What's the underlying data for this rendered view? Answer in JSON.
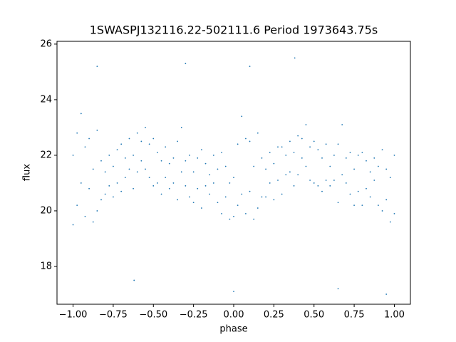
{
  "chart_data": {
    "type": "scatter",
    "title": "1SWASPJ132116.22-502111.6 Period 1973643.75s",
    "xlabel": "phase",
    "ylabel": "flux",
    "color": "#1f77b4",
    "xlim": [
      -1.1,
      1.1
    ],
    "ylim": [
      16.64,
      26.1
    ],
    "xticks": [
      {
        "value": -1,
        "label": "−1.00"
      },
      {
        "value": -0.75,
        "label": "−0.75"
      },
      {
        "value": -0.5,
        "label": "−0.50"
      },
      {
        "value": -0.25,
        "label": "−0.25"
      },
      {
        "value": 0,
        "label": "0.00"
      },
      {
        "value": 0.25,
        "label": "0.25"
      },
      {
        "value": 0.5,
        "label": "0.50"
      },
      {
        "value": 0.75,
        "label": "0.75"
      },
      {
        "value": 1,
        "label": "1.00"
      }
    ],
    "yticks": [
      18,
      20,
      22,
      24,
      26
    ],
    "x": [
      -1,
      -1,
      -0.975,
      -0.975,
      -0.95,
      -0.95,
      -0.925,
      -0.925,
      -0.9,
      -0.9,
      -0.875,
      -0.875,
      -0.85,
      -0.85,
      -0.825,
      -0.825,
      -0.8,
      -0.8,
      -0.775,
      -0.775,
      -0.75,
      -0.75,
      -0.725,
      -0.725,
      -0.7,
      -0.7,
      -0.675,
      -0.675,
      -0.65,
      -0.65,
      -0.625,
      -0.625,
      -0.6,
      -0.6,
      -0.575,
      -0.575,
      -0.55,
      -0.55,
      -0.525,
      -0.525,
      -0.5,
      -0.5,
      -0.475,
      -0.475,
      -0.45,
      -0.45,
      -0.425,
      -0.425,
      -0.4,
      -0.4,
      -0.375,
      -0.375,
      -0.35,
      -0.35,
      -0.325,
      -0.325,
      -0.3,
      -0.3,
      -0.275,
      -0.275,
      -0.25,
      -0.25,
      -0.225,
      -0.225,
      -0.2,
      -0.2,
      -0.175,
      -0.175,
      -0.15,
      -0.15,
      -0.125,
      -0.125,
      -0.1,
      -0.1,
      -0.075,
      -0.075,
      -0.05,
      -0.05,
      -0.025,
      -0.025,
      0,
      0,
      0.025,
      0.025,
      0.05,
      0.05,
      0.075,
      0.075,
      0.1,
      0.1,
      0.125,
      0.125,
      0.15,
      0.15,
      0.175,
      0.175,
      0.2,
      0.2,
      0.225,
      0.225,
      0.25,
      0.25,
      0.275,
      0.275,
      0.3,
      0.3,
      0.325,
      0.325,
      0.35,
      0.35,
      0.375,
      0.375,
      0.4,
      0.4,
      0.425,
      0.425,
      0.45,
      0.45,
      0.475,
      0.475,
      0.5,
      0.5,
      0.525,
      0.525,
      0.55,
      0.55,
      0.575,
      0.575,
      0.6,
      0.6,
      0.625,
      0.625,
      0.65,
      0.65,
      0.675,
      0.675,
      0.7,
      0.7,
      0.725,
      0.725,
      0.75,
      0.75,
      0.775,
      0.775,
      0.8,
      0.8,
      0.825,
      0.825,
      0.85,
      0.85,
      0.875,
      0.875,
      0.9,
      0.9,
      0.925,
      0.925,
      0.95,
      0.95,
      0.975,
      0.975,
      1,
      1,
      -0.62,
      -0.3,
      0.1,
      0.65,
      0.95,
      -0.85,
      0,
      0.38
    ],
    "y": [
      19.5,
      22,
      20.2,
      22.8,
      21,
      23.5,
      19.8,
      22.3,
      20.8,
      22.6,
      19.6,
      21.5,
      20,
      22.9,
      20.4,
      21.8,
      20.6,
      21.4,
      20.9,
      22,
      20.5,
      21.6,
      21,
      22.2,
      20.7,
      22.4,
      21.2,
      21.9,
      21.5,
      22.6,
      20.8,
      22,
      21.4,
      22.8,
      21.8,
      22.5,
      21.5,
      23,
      21.2,
      22.4,
      20.9,
      22.6,
      21,
      22.1,
      20.6,
      21.8,
      21.2,
      22.3,
      20.8,
      21.7,
      21,
      21.9,
      20.4,
      22.5,
      21.4,
      23,
      20.9,
      21.8,
      20.5,
      22,
      20.3,
      21.4,
      20.8,
      21.9,
      20.1,
      22.2,
      20.9,
      21.7,
      20.6,
      21.3,
      21,
      22,
      20.3,
      21.5,
      19.9,
      22.1,
      20.5,
      21.6,
      19.7,
      21,
      19.8,
      21.2,
      20.2,
      22.4,
      20.6,
      23.4,
      19.9,
      22.6,
      20.7,
      22.5,
      19.7,
      21.6,
      20.1,
      22.8,
      20.5,
      21.9,
      20.5,
      21.5,
      21,
      22.1,
      20.4,
      21.7,
      21.1,
      22.3,
      20.6,
      22.3,
      21.3,
      22,
      21.4,
      22.5,
      20.9,
      22.1,
      21.3,
      22.7,
      21.9,
      22.6,
      21.6,
      23.1,
      21.1,
      22.3,
      21,
      22.5,
      20.9,
      22.2,
      20.7,
      21.9,
      21.1,
      22.4,
      20.9,
      21.6,
      21.1,
      22,
      20.3,
      22.4,
      21.3,
      23.1,
      21,
      21.9,
      20.6,
      22.1,
      20.2,
      21.5,
      20.7,
      22,
      20.2,
      22.1,
      20.8,
      21.8,
      20.5,
      21.4,
      21.1,
      21.9,
      20.2,
      21.6,
      20,
      22.2,
      20.4,
      21.5,
      19.6,
      21.2,
      19.9,
      22,
      17.5,
      25.3,
      25.2,
      17.2,
      17,
      25.2,
      17.1,
      25.5
    ]
  }
}
